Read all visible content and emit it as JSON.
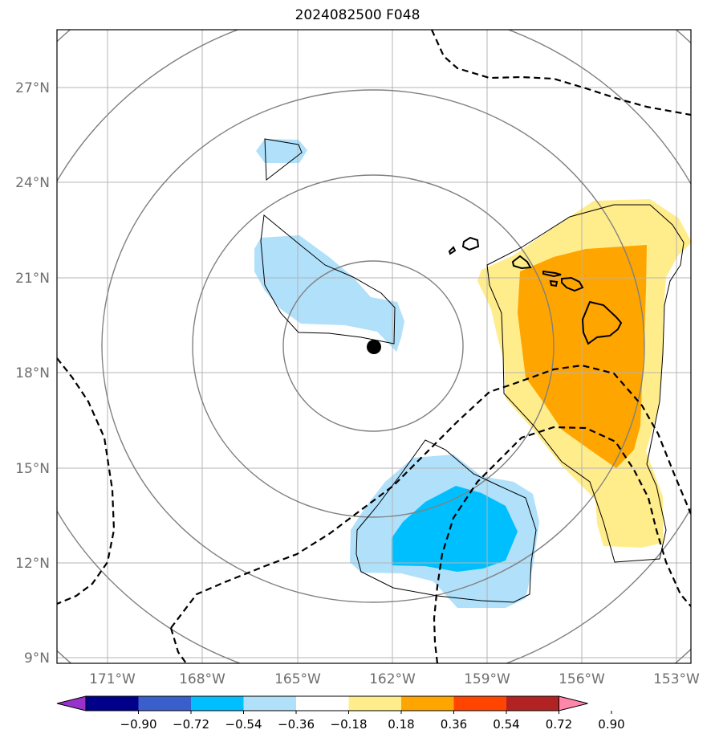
{
  "title": "2024082500 F048",
  "map": {
    "lat_labels": [
      "27°N",
      "24°N",
      "21°N",
      "18°N",
      "15°N",
      "12°N",
      "9°N"
    ],
    "lon_labels": [
      "171°W",
      "168°W",
      "165°W",
      "162°W",
      "159°W",
      "156°W",
      "153°W"
    ],
    "storm_center": {
      "lon": "162.6°W",
      "lat": "18.8°N"
    }
  },
  "colorbar": {
    "levels": [
      "−0.90",
      "−0.72",
      "−0.54",
      "−0.36",
      "−0.18",
      "0.18",
      "0.36",
      "0.54",
      "0.72",
      "0.90"
    ],
    "colors": [
      "#9932cc",
      "#00008b",
      "#3a5fcd",
      "#00bfff",
      "#b0e0fa",
      "#ffffff",
      "#ffec8b",
      "#ffa500",
      "#ff4500",
      "#b22222",
      "#ff88aa"
    ]
  }
}
